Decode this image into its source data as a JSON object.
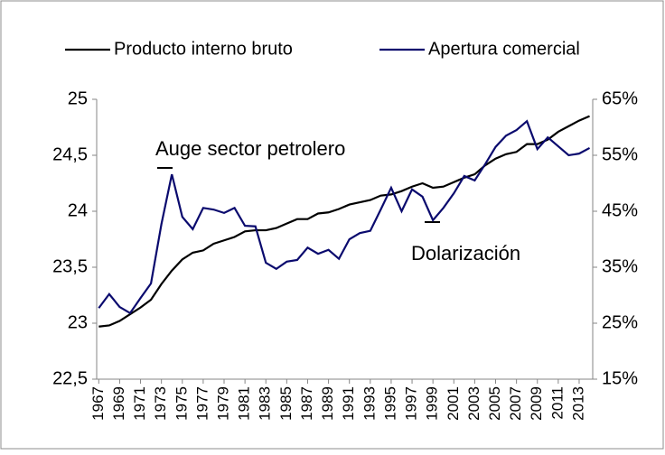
{
  "chart_data": {
    "type": "line",
    "x": [
      1967,
      1968,
      1969,
      1970,
      1971,
      1972,
      1973,
      1974,
      1975,
      1976,
      1977,
      1978,
      1979,
      1980,
      1981,
      1982,
      1983,
      1984,
      1985,
      1986,
      1987,
      1988,
      1989,
      1990,
      1991,
      1992,
      1993,
      1994,
      1995,
      1996,
      1997,
      1998,
      1999,
      2000,
      2001,
      2002,
      2003,
      2004,
      2005,
      2006,
      2007,
      2008,
      2009,
      2010,
      2011,
      2012,
      2013,
      2014
    ],
    "xlim": [
      1966.8,
      2014.3
    ],
    "xticks": [
      1967,
      1969,
      1971,
      1973,
      1975,
      1977,
      1979,
      1981,
      1983,
      1985,
      1987,
      1989,
      1991,
      1993,
      1995,
      1997,
      1999,
      2001,
      2003,
      2005,
      2007,
      2009,
      2011,
      2013
    ],
    "ylim": [
      22.5,
      25
    ],
    "yticks": [
      {
        "value": 22.5,
        "label": "22,5"
      },
      23,
      {
        "value": 23.5,
        "label": "23,5"
      },
      24,
      {
        "value": 24.5,
        "label": "24,5"
      },
      25
    ],
    "y2lim": [
      15,
      65
    ],
    "y2ticks": [
      {
        "value": 15,
        "label": "15%"
      },
      {
        "value": 25,
        "label": "25%"
      },
      {
        "value": 35,
        "label": "35%"
      },
      {
        "value": 45,
        "label": "45%"
      },
      {
        "value": 55,
        "label": "55%"
      },
      {
        "value": 65,
        "label": "65%"
      }
    ],
    "series": [
      {
        "name": "Producto interno bruto",
        "color": "#000000",
        "values": [
          22.97,
          22.98,
          23.02,
          23.08,
          23.14,
          23.21,
          23.35,
          23.47,
          23.57,
          23.63,
          23.65,
          23.71,
          23.74,
          23.77,
          23.82,
          23.83,
          23.83,
          23.85,
          23.89,
          23.93,
          23.93,
          23.98,
          23.99,
          24.02,
          24.06,
          24.08,
          24.1,
          24.14,
          24.15,
          24.18,
          24.22,
          24.25,
          24.21,
          24.22,
          24.26,
          24.3,
          24.33,
          24.41,
          24.47,
          24.51,
          24.53,
          24.6,
          24.6,
          24.64,
          24.71,
          24.76,
          24.81,
          24.85
        ]
      },
      {
        "name": "Apertura comercial",
        "color": "#0a0a6e",
        "axis": "y2",
        "values": [
          27.7,
          30.2,
          27.9,
          26.8,
          29.5,
          32.1,
          42.7,
          51.6,
          44,
          41.8,
          45.6,
          45.3,
          44.7,
          45.6,
          42.4,
          42.3,
          35.8,
          34.7,
          36,
          36.3,
          38.5,
          37.4,
          38.1,
          36.5,
          40,
          41.1,
          41.5,
          45.3,
          49.2,
          45,
          48.9,
          47.6,
          43.4,
          45.6,
          48.2,
          51.3,
          50.5,
          53.4,
          56.5,
          58.5,
          59.5,
          61.1,
          56.1,
          58.2,
          56.6,
          55,
          55.3,
          56.3
        ]
      }
    ],
    "annotations": [
      "Auge sector petrolero",
      "Dolarización"
    ]
  }
}
